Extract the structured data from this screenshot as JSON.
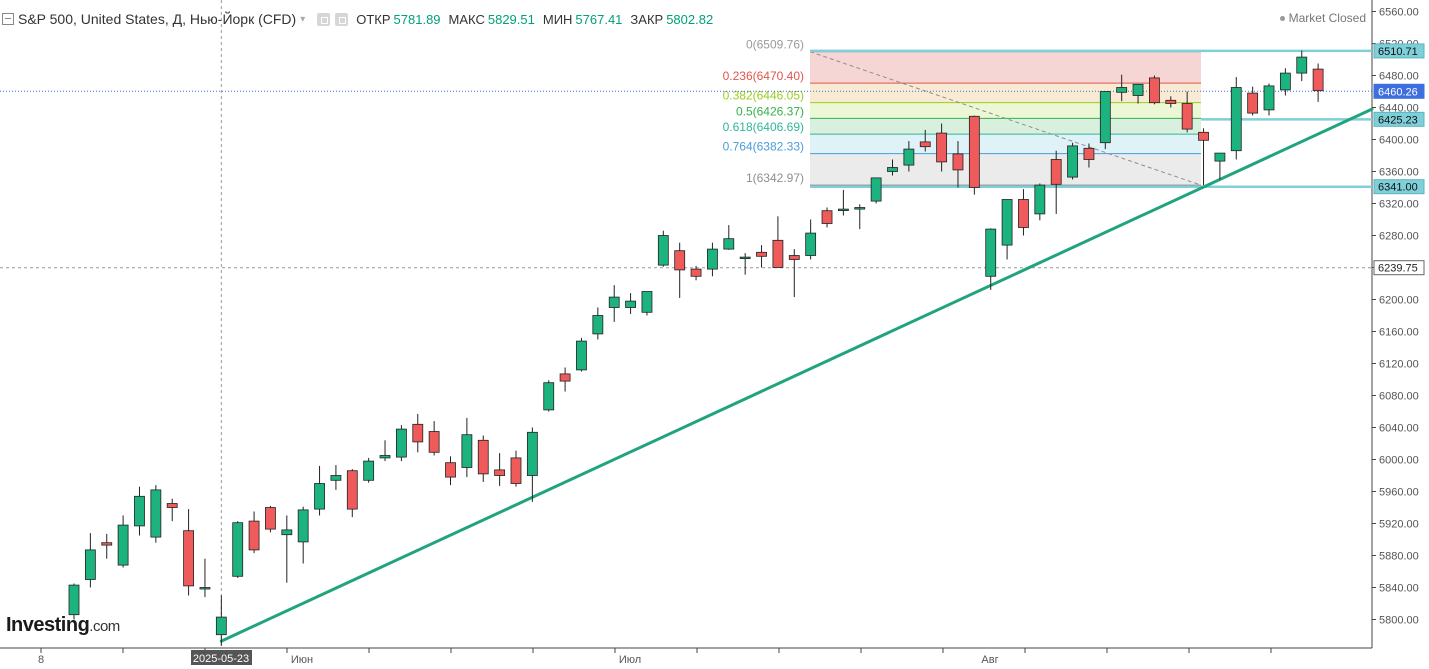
{
  "header": {
    "title": "S&P 500, United States, Д, Нью-Йорк (CFD)",
    "open_label": "ОТКР",
    "open_value": "5781.89",
    "high_label": "МАКС",
    "high_value": "5829.51",
    "low_label": "МИН",
    "low_value": "5767.41",
    "close_label": "ЗАКР",
    "close_value": "5802.82"
  },
  "status": {
    "market": "Market Closed"
  },
  "logo": {
    "brand": "Investing",
    "suffix": ".com"
  },
  "colors": {
    "up": "#1db37e",
    "down": "#ef5b5b",
    "trendline": "#22a37f",
    "level_line": "#7fcfd9",
    "price_line": "#3d6fe0",
    "axis_text": "#555555"
  },
  "chart_data": {
    "type": "candlestick",
    "instrument": "S&P 500",
    "ylim": [
      5770,
      6570
    ],
    "y_ticks": [
      5800,
      5840,
      5880,
      5920,
      5960,
      6000,
      6040,
      6080,
      6120,
      6160,
      6200,
      6240,
      6280,
      6320,
      6360,
      6400,
      6440,
      6480,
      6520,
      6560
    ],
    "x_labels": [
      "8",
      "2025-05-23",
      "Июн",
      "Июл",
      "Авг"
    ],
    "grid": false,
    "candles": [
      {
        "o": 5806,
        "h": 5845,
        "l": 5800,
        "c": 5843
      },
      {
        "o": 5850,
        "h": 5908,
        "l": 5840,
        "c": 5887
      },
      {
        "o": 5896,
        "h": 5907,
        "l": 5876,
        "c": 5893
      },
      {
        "o": 5868,
        "h": 5930,
        "l": 5865,
        "c": 5918
      },
      {
        "o": 5917,
        "h": 5966,
        "l": 5905,
        "c": 5954
      },
      {
        "o": 5903,
        "h": 5968,
        "l": 5896,
        "c": 5962
      },
      {
        "o": 5945,
        "h": 5951,
        "l": 5923,
        "c": 5940
      },
      {
        "o": 5911,
        "h": 5938,
        "l": 5830,
        "c": 5842
      },
      {
        "o": 5840,
        "h": 5876,
        "l": 5828,
        "c": 5840
      },
      {
        "o": 5781,
        "h": 5830,
        "l": 5767,
        "c": 5803
      },
      {
        "o": 5854,
        "h": 5923,
        "l": 5852,
        "c": 5921
      },
      {
        "o": 5923,
        "h": 5935,
        "l": 5883,
        "c": 5887
      },
      {
        "o": 5940,
        "h": 5942,
        "l": 5909,
        "c": 5913
      },
      {
        "o": 5906,
        "h": 5930,
        "l": 5846,
        "c": 5912
      },
      {
        "o": 5897,
        "h": 5941,
        "l": 5870,
        "c": 5937
      },
      {
        "o": 5938,
        "h": 5992,
        "l": 5930,
        "c": 5970
      },
      {
        "o": 5974,
        "h": 5993,
        "l": 5962,
        "c": 5980
      },
      {
        "o": 5986,
        "h": 5988,
        "l": 5928,
        "c": 5938
      },
      {
        "o": 5974,
        "h": 6002,
        "l": 5971,
        "c": 5998
      },
      {
        "o": 6002,
        "h": 6024,
        "l": 5998,
        "c": 6005
      },
      {
        "o": 6003,
        "h": 6043,
        "l": 5998,
        "c": 6038
      },
      {
        "o": 6044,
        "h": 6057,
        "l": 6009,
        "c": 6022
      },
      {
        "o": 6035,
        "h": 6048,
        "l": 6005,
        "c": 6009
      },
      {
        "o": 5996,
        "h": 6004,
        "l": 5968,
        "c": 5978
      },
      {
        "o": 5990,
        "h": 6052,
        "l": 5978,
        "c": 6031
      },
      {
        "o": 6024,
        "h": 6030,
        "l": 5972,
        "c": 5982
      },
      {
        "o": 5987,
        "h": 6008,
        "l": 5967,
        "c": 5980
      },
      {
        "o": 6002,
        "h": 6011,
        "l": 5966,
        "c": 5970
      },
      {
        "o": 5980,
        "h": 6040,
        "l": 5947,
        "c": 6034
      },
      {
        "o": 6062,
        "h": 6099,
        "l": 6060,
        "c": 6096
      },
      {
        "o": 6107,
        "h": 6115,
        "l": 6085,
        "c": 6098
      },
      {
        "o": 6112,
        "h": 6152,
        "l": 6110,
        "c": 6148
      },
      {
        "o": 6157,
        "h": 6190,
        "l": 6150,
        "c": 6180
      },
      {
        "o": 6190,
        "h": 6218,
        "l": 6172,
        "c": 6203
      },
      {
        "o": 6190,
        "h": 6208,
        "l": 6182,
        "c": 6198
      },
      {
        "o": 6184,
        "h": 6210,
        "l": 6180,
        "c": 6210
      },
      {
        "o": 6243,
        "h": 6286,
        "l": 6241,
        "c": 6280
      },
      {
        "o": 6261,
        "h": 6271,
        "l": 6202,
        "c": 6237
      },
      {
        "o": 6238,
        "h": 6242,
        "l": 6224,
        "c": 6229
      },
      {
        "o": 6238,
        "h": 6271,
        "l": 6229,
        "c": 6263
      },
      {
        "o": 6263,
        "h": 6293,
        "l": 6262,
        "c": 6276
      },
      {
        "o": 6253,
        "h": 6258,
        "l": 6231,
        "c": 6253
      },
      {
        "o": 6259,
        "h": 6268,
        "l": 6240,
        "c": 6254
      },
      {
        "o": 6274,
        "h": 6304,
        "l": 6240,
        "c": 6240
      },
      {
        "o": 6255,
        "h": 6263,
        "l": 6203,
        "c": 6250
      },
      {
        "o": 6255,
        "h": 6300,
        "l": 6250,
        "c": 6283
      },
      {
        "o": 6311,
        "h": 6315,
        "l": 6290,
        "c": 6295
      },
      {
        "o": 6313,
        "h": 6337,
        "l": 6305,
        "c": 6313
      },
      {
        "o": 6313,
        "h": 6319,
        "l": 6288,
        "c": 6315
      },
      {
        "o": 6323,
        "h": 6350,
        "l": 6320,
        "c": 6352
      },
      {
        "o": 6360,
        "h": 6375,
        "l": 6355,
        "c": 6365
      },
      {
        "o": 6368,
        "h": 6398,
        "l": 6360,
        "c": 6388
      },
      {
        "o": 6397,
        "h": 6412,
        "l": 6385,
        "c": 6391
      },
      {
        "o": 6408,
        "h": 6420,
        "l": 6360,
        "c": 6372
      },
      {
        "o": 6382,
        "h": 6398,
        "l": 6340,
        "c": 6362
      },
      {
        "o": 6429,
        "h": 6430,
        "l": 6331,
        "c": 6340
      },
      {
        "o": 6229,
        "h": 6289,
        "l": 6212,
        "c": 6288
      },
      {
        "o": 6268,
        "h": 6319,
        "l": 6250,
        "c": 6325
      },
      {
        "o": 6325,
        "h": 6338,
        "l": 6280,
        "c": 6290
      },
      {
        "o": 6307,
        "h": 6345,
        "l": 6299,
        "c": 6343
      },
      {
        "o": 6375,
        "h": 6386,
        "l": 6307,
        "c": 6344
      },
      {
        "o": 6353,
        "h": 6396,
        "l": 6350,
        "c": 6392
      },
      {
        "o": 6389,
        "h": 6395,
        "l": 6365,
        "c": 6375
      },
      {
        "o": 6396,
        "h": 6460,
        "l": 6388,
        "c": 6460
      },
      {
        "o": 6459,
        "h": 6481,
        "l": 6448,
        "c": 6465
      },
      {
        "o": 6455,
        "h": 6468,
        "l": 6445,
        "c": 6469
      },
      {
        "o": 6477,
        "h": 6480,
        "l": 6444,
        "c": 6446
      },
      {
        "o": 6449,
        "h": 6454,
        "l": 6440,
        "c": 6445
      },
      {
        "o": 6445,
        "h": 6460,
        "l": 6409,
        "c": 6413
      },
      {
        "o": 6409,
        "h": 6414,
        "l": 6343,
        "c": 6399
      },
      {
        "o": 6373,
        "h": 6380,
        "l": 6350,
        "c": 6383
      },
      {
        "o": 6386,
        "h": 6478,
        "l": 6375,
        "c": 6465
      },
      {
        "o": 6458,
        "h": 6466,
        "l": 6430,
        "c": 6433
      },
      {
        "o": 6437,
        "h": 6470,
        "l": 6430,
        "c": 6467
      },
      {
        "o": 6462,
        "h": 6489,
        "l": 6455,
        "c": 6483
      },
      {
        "o": 6483,
        "h": 6511,
        "l": 6473,
        "c": 6503
      },
      {
        "o": 6488,
        "h": 6495,
        "l": 6447,
        "c": 6461
      }
    ],
    "fibonacci": {
      "levels": [
        {
          "label": "0(6509.76)",
          "value": 6509.76,
          "color": "#9a9a9a",
          "fill": "#f3c7c7"
        },
        {
          "label": "0.236(6470.40)",
          "value": 6470.4,
          "color": "#e2554d",
          "fill": "#f7e3c4"
        },
        {
          "label": "0.382(6446.05)",
          "value": 6446.05,
          "color": "#9ccc1f",
          "fill": "#e6f4c8"
        },
        {
          "label": "0.5(6426.37)",
          "value": 6426.37,
          "color": "#33b24a",
          "fill": "#cdebd4"
        },
        {
          "label": "0.618(6406.69)",
          "value": 6406.69,
          "color": "#2fb79a",
          "fill": "#d3eef5"
        },
        {
          "label": "0.764(6382.33)",
          "value": 6382.33,
          "color": "#4a9edb",
          "fill": "#e4e4e4"
        },
        {
          "label": "1(6342.97)",
          "value": 6342.97,
          "color": "#8f8f8f",
          "fill": null
        }
      ]
    },
    "price_tags": [
      {
        "label": "6510.71",
        "value": 6510.71,
        "kind": "level"
      },
      {
        "label": "6460.26",
        "value": 6460.26,
        "kind": "price"
      },
      {
        "label": "6425.23",
        "value": 6425.23,
        "kind": "level"
      },
      {
        "label": "6341.00",
        "value": 6341.0,
        "kind": "level"
      },
      {
        "label": "6239.75",
        "value": 6239.75,
        "kind": "crosshair"
      }
    ],
    "trendline": {
      "from_candle": 9,
      "from_value": 5773,
      "to_value": 6438
    }
  }
}
